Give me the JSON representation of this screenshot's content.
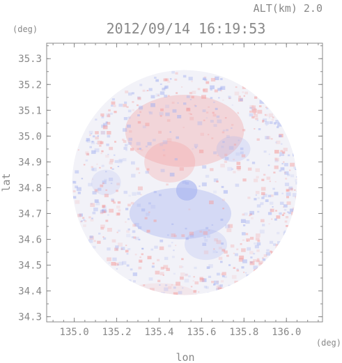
{
  "header": {
    "altitude_label": "ALT(km) 2.0",
    "timestamp": "2012/09/14 16:19:53",
    "y_unit": "(deg)",
    "x_unit": "(deg)"
  },
  "chart_data": {
    "type": "heatmap",
    "title": "2012/09/14 16:19:53",
    "subtitle": "ALT(km) 2.0",
    "xlabel": "lon",
    "ylabel": "lat",
    "x_unit": "(deg)",
    "y_unit": "(deg)",
    "xlim": [
      134.87,
      136.17
    ],
    "ylim": [
      34.28,
      35.36
    ],
    "x_ticks": [
      135.0,
      135.2,
      135.4,
      135.6,
      135.8,
      136.0
    ],
    "x_tick_labels": [
      "135.0",
      "135.2",
      "135.4",
      "135.6",
      "135.8",
      "136.0"
    ],
    "y_ticks": [
      34.3,
      34.4,
      34.5,
      34.6,
      34.7,
      34.8,
      34.9,
      35.0,
      35.1,
      35.2,
      35.3
    ],
    "y_tick_labels": [
      "34.3",
      "34.4",
      "34.5",
      "34.6",
      "34.7",
      "34.8",
      "34.9",
      "35.0",
      "35.1",
      "35.2",
      "35.3"
    ],
    "grid": false,
    "coverage": {
      "center_lon": 135.52,
      "center_lat": 34.82,
      "radius_deg": 0.53
    },
    "colors": {
      "positive": "#f4a0a0",
      "negative": "#a8b4f0",
      "neutral": "#f2f2f8",
      "axis": "#888888"
    },
    "regions": [
      {
        "lon": 135.52,
        "lat": 35.02,
        "rx": 0.28,
        "ry": 0.14,
        "sign": 1,
        "intensity": 0.35
      },
      {
        "lon": 135.45,
        "lat": 34.9,
        "rx": 0.12,
        "ry": 0.08,
        "sign": 1,
        "intensity": 0.3
      },
      {
        "lon": 135.5,
        "lat": 34.7,
        "rx": 0.24,
        "ry": 0.1,
        "sign": -1,
        "intensity": 0.4
      },
      {
        "lon": 135.53,
        "lat": 34.79,
        "rx": 0.05,
        "ry": 0.04,
        "sign": -1,
        "intensity": 0.65
      },
      {
        "lon": 135.62,
        "lat": 34.58,
        "rx": 0.1,
        "ry": 0.06,
        "sign": -1,
        "intensity": 0.25
      },
      {
        "lon": 135.75,
        "lat": 34.95,
        "rx": 0.08,
        "ry": 0.05,
        "sign": -1,
        "intensity": 0.25
      },
      {
        "lon": 135.15,
        "lat": 34.82,
        "rx": 0.07,
        "ry": 0.05,
        "sign": -1,
        "intensity": 0.2
      },
      {
        "lon": 135.4,
        "lat": 34.38,
        "rx": 0.18,
        "ry": 0.05,
        "sign": 1,
        "intensity": 0.15
      }
    ]
  }
}
